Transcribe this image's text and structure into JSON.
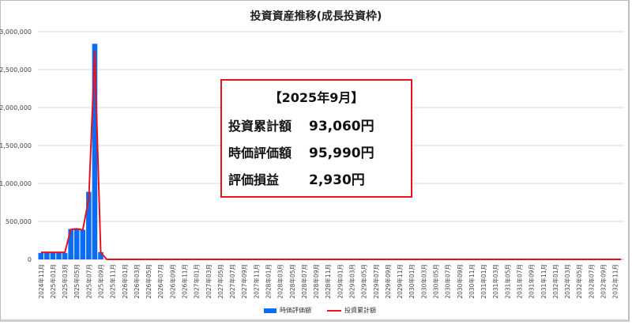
{
  "chart_data": {
    "type": "bar+line",
    "title": "投資資産推移(成長投資枠)",
    "ylim": [
      0,
      3000000
    ],
    "yticks": [
      "0",
      "500,000",
      "1,000,000",
      "1,500,000",
      "2,000,000",
      "2,500,000",
      "3,000,000"
    ],
    "grid": true,
    "legend_placement": "bottom",
    "categories": [
      "2024年11月",
      "2024年12月",
      "2025年01月",
      "2025年02月",
      "2025年03月",
      "2025年04月",
      "2025年05月",
      "2025年06月",
      "2025年07月",
      "2025年08月",
      "2025年09月",
      "2025年10月",
      "2025年11月",
      "2025年12月",
      "2026年01月",
      "2026年02月",
      "2026年03月",
      "2026年04月",
      "2026年05月",
      "2026年06月",
      "2026年07月",
      "2026年08月",
      "2026年09月",
      "2026年10月",
      "2026年11月",
      "2026年12月",
      "2027年01月",
      "2027年02月",
      "2027年03月",
      "2027年04月",
      "2027年05月",
      "2027年06月",
      "2027年07月",
      "2027年08月",
      "2027年09月",
      "2027年10月",
      "2027年11月",
      "2027年12月",
      "2028年01月",
      "2028年02月",
      "2028年03月",
      "2028年04月",
      "2028年05月",
      "2028年06月",
      "2028年07月",
      "2028年08月",
      "2028年09月",
      "2028年10月",
      "2028年11月",
      "2028年12月",
      "2029年01月",
      "2029年02月",
      "2029年03月",
      "2029年04月",
      "2029年05月",
      "2029年06月",
      "2029年07月",
      "2029年08月",
      "2029年09月",
      "2029年10月",
      "2029年11月",
      "2029年12月",
      "2030年01月",
      "2030年02月",
      "2030年03月",
      "2030年04月",
      "2030年05月",
      "2030年06月",
      "2030年07月",
      "2030年08月",
      "2030年09月",
      "2030年10月",
      "2030年11月",
      "2030年12月",
      "2031年01月",
      "2031年02月",
      "2031年03月",
      "2031年04月",
      "2031年05月",
      "2031年06月",
      "2031年07月",
      "2031年08月",
      "2031年09月",
      "2031年10月",
      "2031年11月",
      "2031年12月",
      "2032年01月",
      "2032年02月",
      "2032年03月",
      "2032年04月",
      "2032年05月",
      "2032年06月",
      "2032年07月",
      "2032年08月",
      "2032年09月",
      "2032年10月",
      "2032年11月",
      "2032年12月"
    ],
    "series": [
      {
        "name": "時価評価額",
        "type": "bar",
        "color": "#0a6cf5",
        "values": [
          85000,
          85000,
          85000,
          85000,
          85000,
          400000,
          400000,
          390000,
          890000,
          2840000,
          95990,
          0,
          0,
          0,
          0,
          0,
          0,
          0,
          0,
          0,
          0,
          0,
          0,
          0,
          0,
          0,
          0,
          0,
          0,
          0,
          0,
          0,
          0,
          0,
          0,
          0,
          0,
          0,
          0,
          0,
          0,
          0,
          0,
          0,
          0,
          0,
          0,
          0,
          0,
          0,
          0,
          0,
          0,
          0,
          0,
          0,
          0,
          0,
          0,
          0,
          0,
          0,
          0,
          0,
          0,
          0,
          0,
          0,
          0,
          0,
          0,
          0,
          0,
          0,
          0,
          0,
          0,
          0,
          0,
          0,
          0,
          0,
          0,
          0,
          0,
          0,
          0,
          0,
          0,
          0,
          0,
          0,
          0,
          0,
          0,
          0,
          0,
          0
        ]
      },
      {
        "name": "投資累計額",
        "type": "line",
        "color": "#e8121b",
        "values": [
          93060,
          93060,
          93060,
          93060,
          93060,
          393060,
          403060,
          388060,
          800000,
          2740000,
          93060,
          0,
          0,
          0,
          0,
          0,
          0,
          0,
          0,
          0,
          0,
          0,
          0,
          0,
          0,
          0,
          0,
          0,
          0,
          0,
          0,
          0,
          0,
          0,
          0,
          0,
          0,
          0,
          0,
          0,
          0,
          0,
          0,
          0,
          0,
          0,
          0,
          0,
          0,
          0,
          0,
          0,
          0,
          0,
          0,
          0,
          0,
          0,
          0,
          0,
          0,
          0,
          0,
          0,
          0,
          0,
          0,
          0,
          0,
          0,
          0,
          0,
          0,
          0,
          0,
          0,
          0,
          0,
          0,
          0,
          0,
          0,
          0,
          0,
          0,
          0,
          0,
          0,
          0,
          0,
          0,
          0,
          0,
          0,
          0,
          0,
          0,
          0
        ]
      }
    ],
    "annotation": {
      "heading": "【2025年9月】",
      "rows": [
        {
          "label": "投資累計額",
          "value": "93,060円"
        },
        {
          "label": "時価評価額",
          "value": "95,990円"
        },
        {
          "label": "評価損益",
          "value": "2,930円"
        }
      ]
    }
  }
}
